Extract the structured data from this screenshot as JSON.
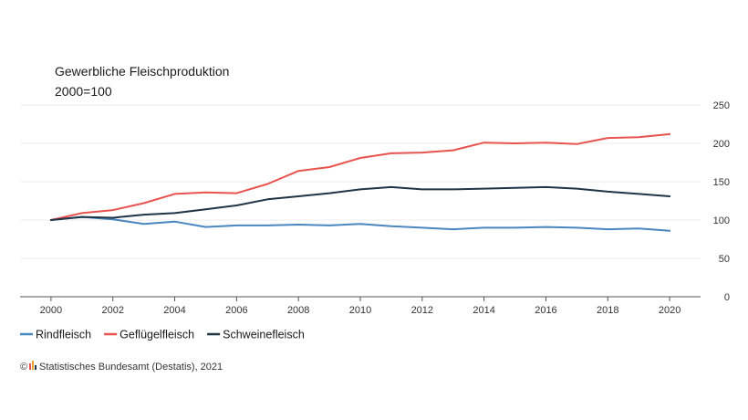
{
  "chart_data": {
    "type": "line",
    "title": "Gewerbliche Fleischproduktion",
    "subtitle": "2000=100",
    "xlabel": "",
    "ylabel": "",
    "x": [
      2000,
      2001,
      2002,
      2003,
      2004,
      2005,
      2006,
      2007,
      2008,
      2009,
      2010,
      2011,
      2012,
      2013,
      2014,
      2015,
      2016,
      2017,
      2018,
      2019,
      2020
    ],
    "xlim": [
      1999,
      2021
    ],
    "ylim": [
      0,
      250
    ],
    "x_ticks": [
      "2000",
      "2002",
      "2004",
      "2006",
      "2008",
      "2010",
      "2012",
      "2014",
      "2016",
      "2018",
      "2020"
    ],
    "y_ticks": [
      "0",
      "50",
      "100",
      "150",
      "200",
      "250"
    ],
    "grid": true,
    "legend_position": "bottom-left",
    "series": [
      {
        "name": "Rindfleisch",
        "color": "#4a86c0",
        "values": [
          100,
          104,
          101,
          95,
          98,
          91,
          93,
          93,
          94,
          93,
          95,
          92,
          90,
          88,
          90,
          90,
          91,
          90,
          88,
          89,
          86
        ]
      },
      {
        "name": "Geflügelfleisch",
        "color": "#e8534f",
        "values": [
          100,
          109,
          113,
          122,
          134,
          136,
          135,
          147,
          164,
          169,
          181,
          187,
          188,
          191,
          201,
          200,
          201,
          199,
          207,
          208,
          212
        ]
      },
      {
        "name": "Schweinefleisch",
        "color": "#1f3447",
        "values": [
          100,
          104,
          103,
          107,
          109,
          114,
          119,
          127,
          131,
          135,
          140,
          143,
          140,
          140,
          141,
          142,
          143,
          141,
          137,
          134,
          131
        ]
      }
    ]
  },
  "source": {
    "copyright_symbol": "©",
    "logo_icon": "destatis-logo-icon",
    "text": "Statistisches Bundesamt (Destatis), 2021"
  }
}
